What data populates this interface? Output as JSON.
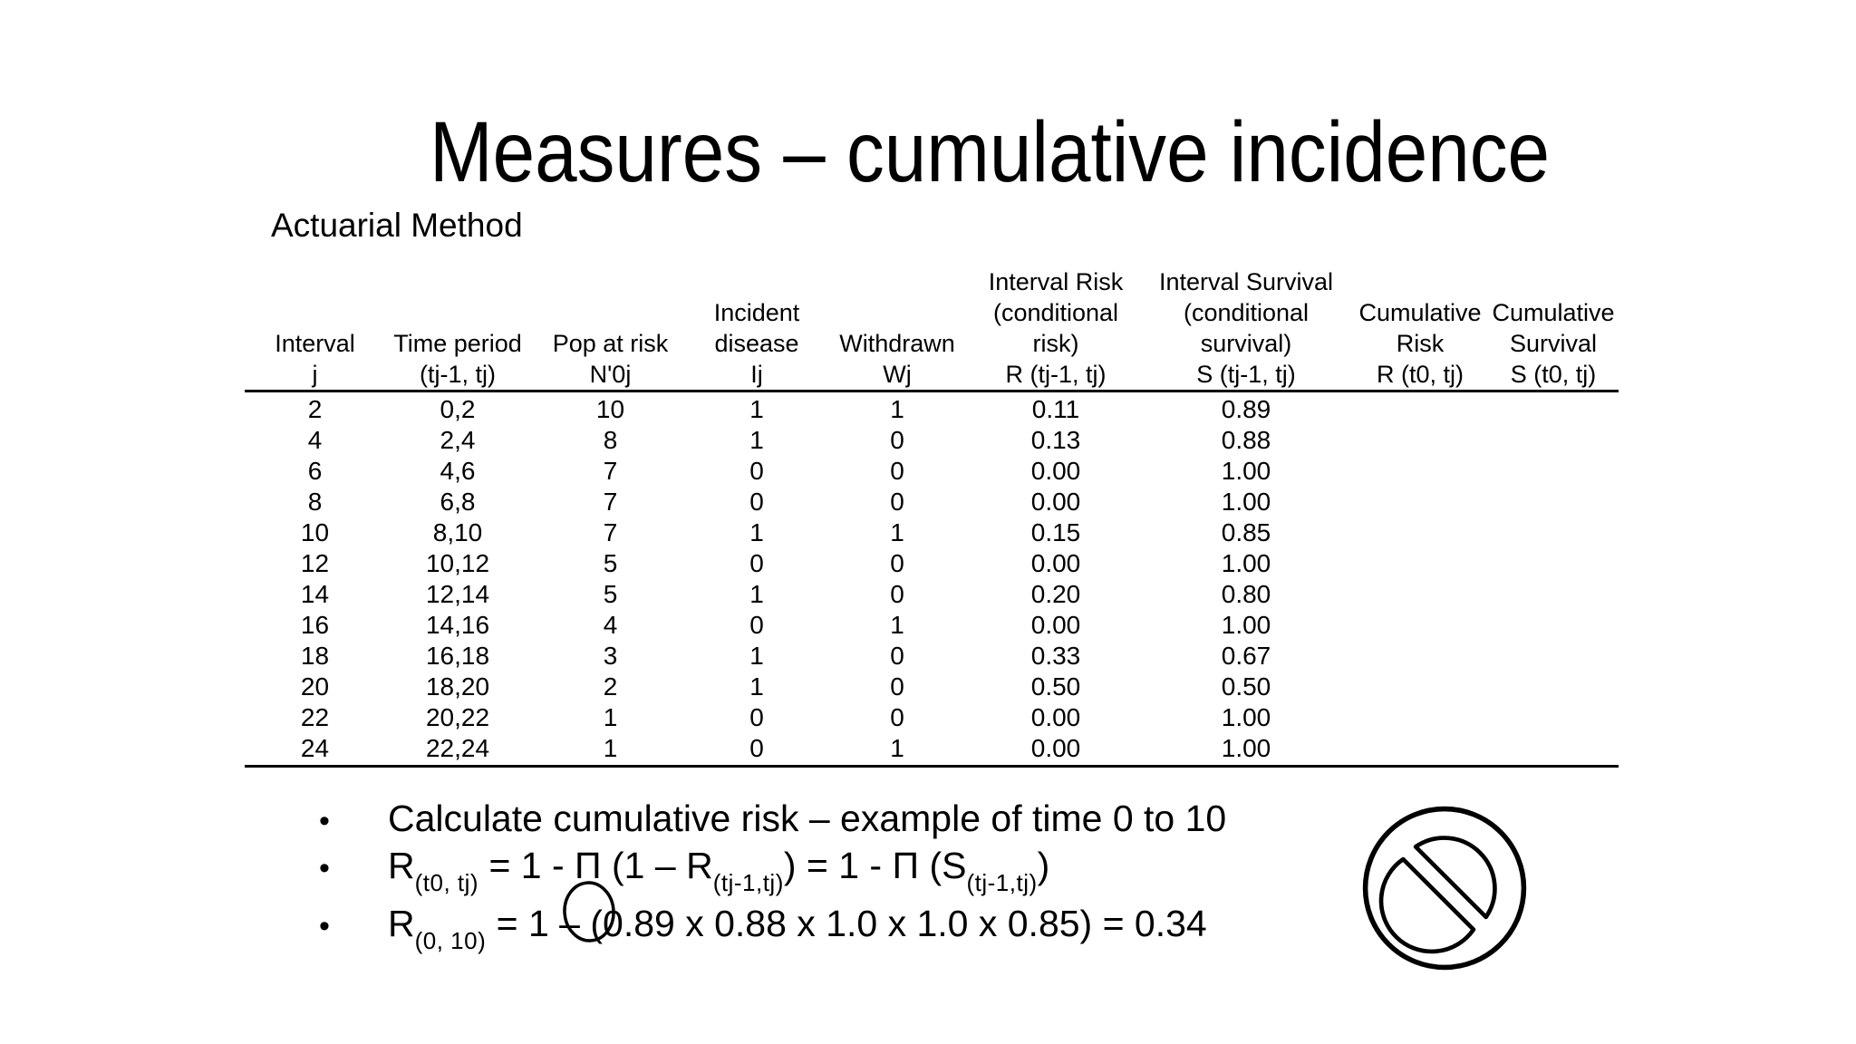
{
  "slide": {
    "title": "Measures – cumulative incidence",
    "subtitle": "Actuarial Method",
    "background_color": "#ffffff",
    "text_color": "#000000"
  },
  "table": {
    "columns": [
      {
        "lines": [
          "Interval",
          "j"
        ]
      },
      {
        "lines": [
          "Time period",
          "(tj-1, tj)"
        ]
      },
      {
        "lines": [
          "Pop at risk",
          "N'0j"
        ]
      },
      {
        "lines": [
          "Incident",
          "disease",
          "Ij"
        ]
      },
      {
        "lines": [
          "Withdrawn",
          "Wj"
        ]
      },
      {
        "lines": [
          "Interval Risk",
          "(conditional",
          "risk)",
          "R (tj-1, tj)"
        ]
      },
      {
        "lines": [
          "Interval Survival",
          "(conditional",
          "survival)",
          "S (tj-1, tj)"
        ]
      },
      {
        "lines": [
          "Cumulative",
          "Risk",
          "R (t0, tj)"
        ]
      },
      {
        "lines": [
          "Cumulative",
          "Survival",
          "S (t0, tj)"
        ]
      }
    ],
    "rows": [
      [
        "2",
        "0,2",
        "10",
        "1",
        "1",
        "0.11",
        "0.89",
        "",
        ""
      ],
      [
        "4",
        "2,4",
        "8",
        "1",
        "0",
        "0.13",
        "0.88",
        "",
        ""
      ],
      [
        "6",
        "4,6",
        "7",
        "0",
        "0",
        "0.00",
        "1.00",
        "",
        ""
      ],
      [
        "8",
        "6,8",
        "7",
        "0",
        "0",
        "0.00",
        "1.00",
        "",
        ""
      ],
      [
        "10",
        "8,10",
        "7",
        "1",
        "1",
        "0.15",
        "0.85",
        "",
        ""
      ],
      [
        "12",
        "10,12",
        "5",
        "0",
        "0",
        "0.00",
        "1.00",
        "",
        ""
      ],
      [
        "14",
        "12,14",
        "5",
        "1",
        "0",
        "0.20",
        "0.80",
        "",
        ""
      ],
      [
        "16",
        "14,16",
        "4",
        "0",
        "1",
        "0.00",
        "1.00",
        "",
        ""
      ],
      [
        "18",
        "16,18",
        "3",
        "1",
        "0",
        "0.33",
        "0.67",
        "",
        ""
      ],
      [
        "20",
        "18,20",
        "2",
        "1",
        "0",
        "0.50",
        "0.50",
        "",
        ""
      ],
      [
        "22",
        "20,22",
        "1",
        "0",
        "0",
        "0.00",
        "1.00",
        "",
        ""
      ],
      [
        "24",
        "22,24",
        "1",
        "0",
        "1",
        "0.00",
        "1.00",
        "",
        ""
      ]
    ]
  },
  "bullets": {
    "marker": "•",
    "items": [
      {
        "segments": [
          {
            "text": "Calculate cumulative risk – example of time 0 to 10"
          }
        ]
      },
      {
        "segments": [
          {
            "text": "R"
          },
          {
            "sub": "(t0, tj)"
          },
          {
            "text": " = 1 - Π (1 – R"
          },
          {
            "sub": "(tj-1,tj)"
          },
          {
            "text": ") = 1 - Π (S"
          },
          {
            "sub": "(tj-1,tj)"
          },
          {
            "text": ")"
          }
        ]
      },
      {
        "segments": [
          {
            "text": "R"
          },
          {
            "sub": "(0, 10)"
          },
          {
            "text": " = 1 – (0.89 x 0.88 x 1.0 x 1.0 x 0.85) = 0.34"
          }
        ]
      }
    ]
  },
  "annotations": {
    "ellipse_note": "hand-drawn ellipse circling the minus sign in the last formula",
    "prohibition_symbol": "hand-drawn prohibition sign (outer circle with slashed inner circle)"
  }
}
